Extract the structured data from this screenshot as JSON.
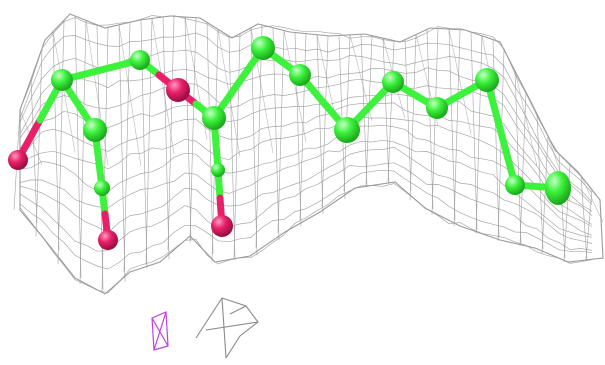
{
  "colors": {
    "background": "#ffffff",
    "mesh": "#9a9a9a",
    "carbon": "#3df23d",
    "carbon_dark": "#1fbf1f",
    "oxygen": "#e8206a",
    "oxygen_dark": "#b0104a",
    "artifact_magenta": "#c040e0",
    "artifact_gray": "#8a8a8a"
  },
  "scene": {
    "subject": "ligand-electron-density-map",
    "mesh_style": "wireframe",
    "representation": "ball-and-stick",
    "atoms": [
      {
        "element": "O"
      },
      {
        "element": "C"
      },
      {
        "element": "C"
      },
      {
        "element": "O"
      },
      {
        "element": "C"
      },
      {
        "element": "C"
      },
      {
        "element": "O"
      },
      {
        "element": "C"
      },
      {
        "element": "O"
      },
      {
        "element": "C"
      },
      {
        "element": "C"
      },
      {
        "element": "C"
      },
      {
        "element": "C"
      },
      {
        "element": "C"
      },
      {
        "element": "C"
      },
      {
        "element": "C"
      },
      {
        "element": "C"
      }
    ]
  }
}
